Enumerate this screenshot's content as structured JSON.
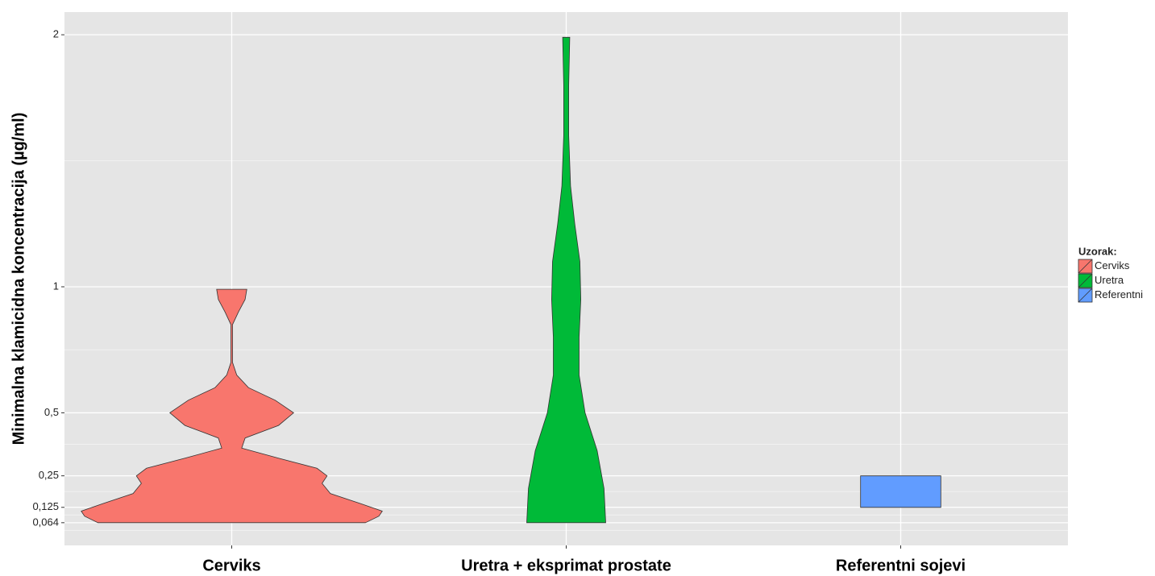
{
  "chart_data": {
    "type": "violin",
    "y_label": "Minimalna klamicidna koncentracija (µg/ml)",
    "categories": [
      "Cerviks",
      "Uretra + eksprimat prostate",
      "Referentni sojevi"
    ],
    "legend_title": "Uzorak:",
    "legend": "right",
    "grid": true,
    "ylim": [
      -0.026,
      2.09
    ],
    "yticks": [
      {
        "value": 0.064,
        "label": "0,064"
      },
      {
        "value": 0.125,
        "label": "0,125"
      },
      {
        "value": 0.25,
        "label": "0,25"
      },
      {
        "value": 0.5,
        "label": "0,5"
      },
      1,
      2
    ],
    "series": [
      {
        "name": "Cerviks",
        "color": "#F8766D",
        "y": [
          0.064,
          0.09,
          0.11,
          0.14,
          0.18,
          0.22,
          0.25,
          0.28,
          0.32,
          0.36,
          0.4,
          0.45,
          0.5,
          0.55,
          0.6,
          0.65,
          0.7,
          0.85,
          0.9,
          0.95,
          0.99
        ],
        "width": [
          0.8,
          0.88,
          0.9,
          0.77,
          0.59,
          0.54,
          0.57,
          0.51,
          0.28,
          0.06,
          0.08,
          0.28,
          0.37,
          0.26,
          0.1,
          0.03,
          0.005,
          0.005,
          0.04,
          0.08,
          0.09
        ]
      },
      {
        "name": "Uretra",
        "color": "#00BA38",
        "y": [
          0.064,
          0.2,
          0.35,
          0.5,
          0.65,
          0.8,
          0.95,
          1.1,
          1.25,
          1.4,
          1.6,
          1.8,
          1.99
        ],
        "width": [
          0.236,
          0.226,
          0.185,
          0.113,
          0.077,
          0.077,
          0.087,
          0.082,
          0.051,
          0.026,
          0.015,
          0.015,
          0.021
        ]
      },
      {
        "name": "Referentni",
        "color": "#619CFF",
        "y": [
          0.125,
          0.25
        ],
        "width": [
          0.24,
          0.24
        ]
      }
    ]
  }
}
